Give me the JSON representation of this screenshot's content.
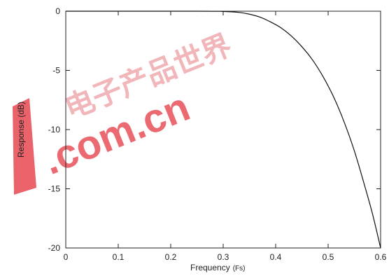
{
  "chart_data": {
    "type": "line",
    "title": "",
    "xlabel": "Frequency",
    "xlabel_unit": "(Fs)",
    "ylabel": "Response (dB)",
    "xlim": [
      0,
      0.6
    ],
    "ylim": [
      -20,
      0
    ],
    "x_ticks": [
      "0",
      "0.1",
      "0.2",
      "0.3",
      "0.4",
      "0.5",
      "0.6"
    ],
    "y_ticks": [
      "0",
      "-5",
      "-10",
      "-15",
      "-20"
    ],
    "grid": false,
    "legend": "none",
    "series": [
      {
        "color": "#111111",
        "x": [
          0,
          0.25,
          0.3,
          0.33,
          0.35,
          0.37,
          0.39,
          0.41,
          0.43,
          0.45,
          0.47,
          0.49,
          0.51,
          0.53,
          0.55,
          0.57,
          0.585,
          0.6
        ],
        "y": [
          0,
          0,
          -0.02,
          -0.1,
          -0.25,
          -0.5,
          -0.9,
          -1.4,
          -2.1,
          -3.0,
          -4.1,
          -5.5,
          -7.2,
          -9.3,
          -11.8,
          -14.8,
          -17.2,
          -20
        ]
      }
    ]
  },
  "watermark": {
    "cjk": "电子产品世界",
    "latin": ".com.cn",
    "color": "#e8515a"
  }
}
